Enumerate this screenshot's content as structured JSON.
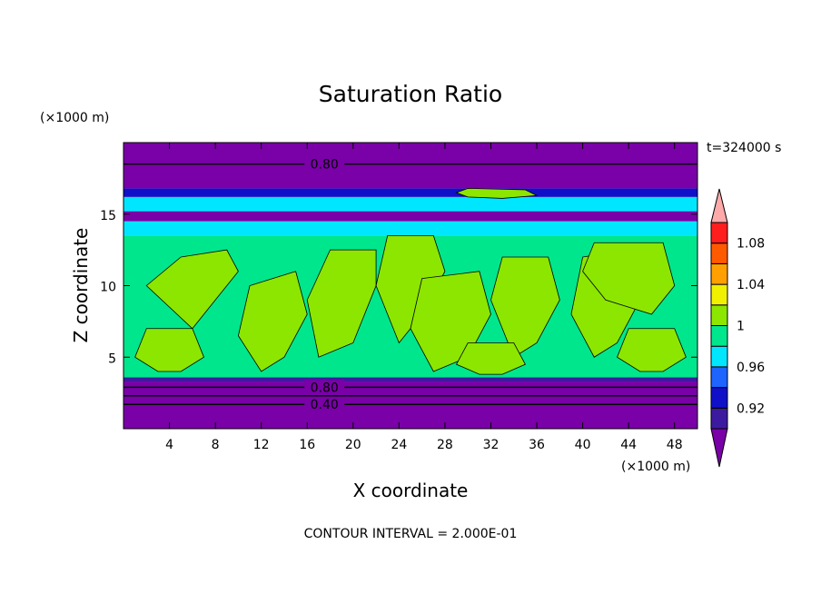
{
  "chart_data": {
    "type": "heatmap",
    "title": "Saturation Ratio",
    "xlabel": "X coordinate",
    "ylabel": "Z coordinate",
    "x_unit": "(×1000 m)",
    "y_unit": "(×1000 m)",
    "time_label": "t=324000 s",
    "footer": "CONTOUR INTERVAL = 2.000E-01",
    "xlim": [
      0,
      50
    ],
    "ylim": [
      0,
      20
    ],
    "x_ticks": [
      4,
      8,
      12,
      16,
      20,
      24,
      28,
      32,
      36,
      40,
      44,
      48
    ],
    "y_ticks": [
      5,
      10,
      15
    ],
    "colorbar": {
      "tick_labels": [
        "0.92",
        "0.96",
        "1",
        "1.04",
        "1.08"
      ],
      "levels": [
        0.9,
        0.92,
        0.94,
        0.96,
        0.98,
        1.0,
        1.02,
        1.04,
        1.06,
        1.08,
        1.1
      ],
      "colors": [
        "#7a00a8",
        "#3c1aa0",
        "#1010c8",
        "#1e64ff",
        "#00e6ff",
        "#00e68c",
        "#8ce600",
        "#f0f000",
        "#ffa000",
        "#ff5a00",
        "#ff1e1e",
        "#ffaaaa"
      ]
    },
    "bands": [
      {
        "z_min": 0.0,
        "z_max": 3.3,
        "value": "<0.90"
      },
      {
        "z_min": 3.3,
        "z_max": 3.6,
        "value": "0.90-0.92"
      },
      {
        "z_min": 3.6,
        "z_max": 13.5,
        "value": "0.98-1.02"
      },
      {
        "z_min": 13.5,
        "z_max": 14.5,
        "value": "0.94-0.98"
      },
      {
        "z_min": 14.5,
        "z_max": 15.2,
        "value": "<0.90"
      },
      {
        "z_min": 15.2,
        "z_max": 16.2,
        "value": "0.96-0.98"
      },
      {
        "z_min": 16.2,
        "z_max": 16.8,
        "value": "0.92-0.94"
      },
      {
        "z_min": 16.8,
        "z_max": 20.0,
        "value": "<0.90"
      }
    ],
    "contour_labels": [
      {
        "text": "0.80",
        "x": 17.5,
        "z": 18.5
      },
      {
        "text": "0.80",
        "x": 17.5,
        "z": 2.9
      },
      {
        "text": "0.40",
        "x": 17.5,
        "z": 1.7
      }
    ],
    "contour_lines": [
      {
        "value": 0.8,
        "z": 18.5
      },
      {
        "value": 0.8,
        "z": 2.9
      },
      {
        "value": 0.6,
        "z": 2.3
      },
      {
        "value": 0.4,
        "z": 1.7
      }
    ],
    "green_patches": [
      {
        "x": [
          5,
          9,
          10,
          8,
          6,
          4,
          2
        ],
        "z": [
          12,
          12.5,
          11,
          9,
          7,
          8.5,
          10
        ]
      },
      {
        "x": [
          11,
          15,
          16,
          14,
          12,
          10
        ],
        "z": [
          10,
          11,
          8,
          5,
          4,
          6.5
        ]
      },
      {
        "x": [
          18,
          22,
          22,
          20,
          17,
          16
        ],
        "z": [
          12.5,
          12.5,
          10,
          6,
          5,
          9
        ]
      },
      {
        "x": [
          23,
          27,
          28,
          26,
          24,
          22
        ],
        "z": [
          13.5,
          13.5,
          11,
          8,
          6,
          10
        ]
      },
      {
        "x": [
          26,
          31,
          32,
          30,
          27,
          25
        ],
        "z": [
          10.5,
          11,
          8,
          5,
          4,
          7
        ]
      },
      {
        "x": [
          33,
          37,
          38,
          36,
          34,
          32
        ],
        "z": [
          12,
          12,
          9,
          6,
          5,
          9
        ]
      },
      {
        "x": [
          40,
          44,
          45,
          43,
          41,
          39
        ],
        "z": [
          12,
          12.5,
          9,
          6,
          5,
          8
        ]
      },
      {
        "x": [
          41,
          47,
          48,
          46,
          42,
          40
        ],
        "z": [
          13,
          13,
          10,
          8,
          9,
          11
        ]
      },
      {
        "x": [
          2,
          6,
          7,
          5,
          3,
          1
        ],
        "z": [
          7,
          7,
          5,
          4,
          4,
          5
        ]
      },
      {
        "x": [
          30,
          34,
          35,
          33,
          31,
          29
        ],
        "z": [
          6,
          6,
          4.5,
          3.8,
          3.8,
          4.5
        ]
      },
      {
        "x": [
          44,
          48,
          49,
          47,
          45,
          43
        ],
        "z": [
          7,
          7,
          5,
          4,
          4,
          5
        ]
      },
      {
        "x": [
          30,
          35,
          36,
          33,
          30,
          29
        ],
        "z": [
          16.8,
          16.7,
          16.3,
          16.1,
          16.2,
          16.5
        ]
      }
    ]
  }
}
